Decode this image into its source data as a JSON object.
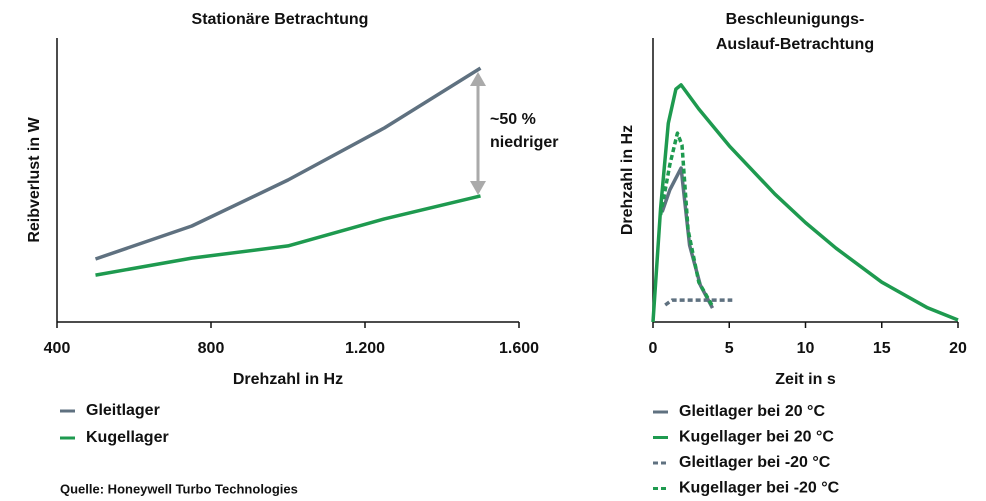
{
  "chart_data": [
    {
      "type": "line",
      "title": "Stationäre Betrachtung",
      "x_label": "Drehzahl in Hz",
      "y_label": "Reibverlust in W",
      "xlim": [
        400,
        1600
      ],
      "ylim": [
        0,
        100
      ],
      "xticks": [
        400,
        800,
        {
          "value": 1200,
          "label": "1.200"
        },
        {
          "value": 1600,
          "label": "1.600"
        }
      ],
      "annotations": [
        "~50 %",
        "niedriger"
      ],
      "series": [
        {
          "name": "Gleitlager",
          "color": "#5f7180",
          "dash": false,
          "x": [
            500,
            750,
            1000,
            1250,
            1500
          ],
          "values": [
            22.2,
            33.8,
            50,
            68.3,
            89.4
          ]
        },
        {
          "name": "Kugellager",
          "color": "#1e9a4f",
          "dash": false,
          "x": [
            500,
            750,
            1000,
            1250,
            1500
          ],
          "values": [
            16.5,
            22.5,
            26.8,
            36.3,
            44.4
          ]
        }
      ]
    },
    {
      "type": "line",
      "title": [
        "Beschleunigungs-",
        "Auslauf-Betrachtung"
      ],
      "x_label": "Zeit in s",
      "y_label": "Drehzahl in Hz",
      "xlim": [
        0,
        20
      ],
      "ylim": [
        0,
        100
      ],
      "xticks": [
        0,
        5,
        10,
        15,
        20
      ],
      "series": [
        {
          "name": "Gleitlager bei 20 °C",
          "color": "#5f7180",
          "dash": false,
          "x": [
            0.6,
            1.1,
            1.84,
            2.0,
            2.4,
            3.1,
            3.9
          ],
          "values": [
            38.7,
            46.5,
            54.2,
            46.5,
            27,
            13,
            4.9
          ]
        },
        {
          "name": "Kugellager bei 20 °C",
          "color": "#1e9a4f",
          "dash": false,
          "x": [
            0,
            0.5,
            1,
            1.5,
            1.84,
            3,
            5,
            8,
            10,
            12,
            15,
            18,
            20
          ],
          "values": [
            0,
            40,
            70,
            82,
            83.5,
            75,
            62,
            45,
            35,
            26,
            14,
            5,
            0.7
          ]
        },
        {
          "name": "Gleitlager bei -20 °C",
          "color": "#5f7180",
          "dash": true,
          "x": [
            0.8,
            1.25,
            5.2
          ],
          "values": [
            6,
            7.7,
            7.7
          ]
        },
        {
          "name": "Kugellager bei -20 °C",
          "color": "#1e9a4f",
          "dash": true,
          "x": [
            0.5,
            1.1,
            1.6,
            1.9,
            2.3,
            3.0,
            3.9
          ],
          "values": [
            37.7,
            55.3,
            66.5,
            62.3,
            32.4,
            14,
            5.6
          ]
        }
      ]
    }
  ],
  "source": "Quelle: Honeywell Turbo Technologies"
}
